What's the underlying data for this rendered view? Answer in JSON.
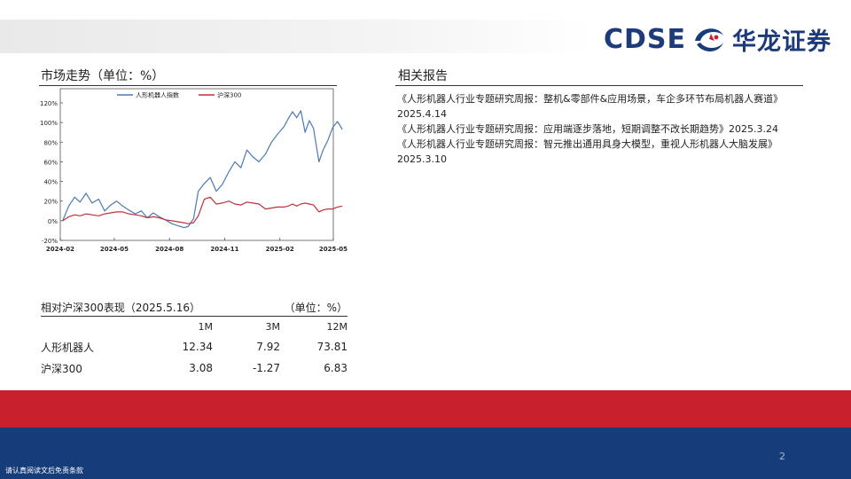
{
  "header": {
    "logo_latin": "CDSE",
    "logo_cn": "华龙证券"
  },
  "market": {
    "title": "市场走势（单位：%）"
  },
  "reports": {
    "title": "相关报告",
    "items": [
      "《人形机器人行业专题研究周报：整机&零部件&应用场景，车企多环节布局机器人赛道》2025.4.14",
      "《人形机器人行业专题研究周报：应用端逐步落地，短期调整不改长期趋势》2025.3.24",
      "《人形机器人行业专题研究周报：智元推出通用具身大模型，重视人形机器人大脑发展》2025.3.10"
    ]
  },
  "chart_data": {
    "type": "line",
    "title": "",
    "xlabel": "",
    "ylabel": "",
    "ylim": [
      -20,
      120
    ],
    "yticks": [
      -20,
      0,
      20,
      40,
      60,
      80,
      100,
      120
    ],
    "ytick_labels": [
      "-20%",
      "0%",
      "20%",
      "40%",
      "60%",
      "80%",
      "100%",
      "120%"
    ],
    "xticks": [
      "2024-02",
      "2024-05",
      "2024-08",
      "2024-11",
      "2025-02",
      "2025-05"
    ],
    "xlim": [
      "2024-02",
      "2025-05"
    ],
    "legend": "top-center",
    "grid": false,
    "series": [
      {
        "name": "人形机器人指数",
        "color": "#4a7ab5",
        "points": [
          [
            "2024-02-05",
            0
          ],
          [
            "2024-02-15",
            15
          ],
          [
            "2024-02-25",
            24
          ],
          [
            "2024-03-05",
            19
          ],
          [
            "2024-03-15",
            28
          ],
          [
            "2024-03-25",
            18
          ],
          [
            "2024-04-05",
            22
          ],
          [
            "2024-04-15",
            10
          ],
          [
            "2024-04-25",
            16
          ],
          [
            "2024-05-05",
            20
          ],
          [
            "2024-05-15",
            15
          ],
          [
            "2024-05-25",
            11
          ],
          [
            "2024-06-05",
            7
          ],
          [
            "2024-06-15",
            10
          ],
          [
            "2024-06-25",
            3
          ],
          [
            "2024-07-05",
            8
          ],
          [
            "2024-07-15",
            4
          ],
          [
            "2024-07-25",
            1
          ],
          [
            "2024-08-05",
            -3
          ],
          [
            "2024-08-15",
            -5
          ],
          [
            "2024-08-25",
            -7
          ],
          [
            "2024-09-01",
            -6
          ],
          [
            "2024-09-10",
            2
          ],
          [
            "2024-09-18",
            30
          ],
          [
            "2024-09-28",
            38
          ],
          [
            "2024-10-08",
            44
          ],
          [
            "2024-10-18",
            30
          ],
          [
            "2024-10-28",
            37
          ],
          [
            "2024-11-08",
            50
          ],
          [
            "2024-11-18",
            60
          ],
          [
            "2024-11-28",
            54
          ],
          [
            "2024-12-08",
            72
          ],
          [
            "2024-12-18",
            65
          ],
          [
            "2024-12-28",
            60
          ],
          [
            "2025-01-08",
            68
          ],
          [
            "2025-01-18",
            80
          ],
          [
            "2025-01-28",
            88
          ],
          [
            "2025-02-08",
            96
          ],
          [
            "2025-02-15",
            104
          ],
          [
            "2025-02-22",
            111
          ],
          [
            "2025-03-01",
            105
          ],
          [
            "2025-03-08",
            112
          ],
          [
            "2025-03-15",
            90
          ],
          [
            "2025-03-22",
            102
          ],
          [
            "2025-03-29",
            94
          ],
          [
            "2025-04-07",
            60
          ],
          [
            "2025-04-14",
            72
          ],
          [
            "2025-04-22",
            82
          ],
          [
            "2025-04-30",
            95
          ],
          [
            "2025-05-08",
            101
          ],
          [
            "2025-05-16",
            93
          ]
        ]
      },
      {
        "name": "沪深300",
        "color": "#c0313a",
        "points": [
          [
            "2024-02-05",
            0
          ],
          [
            "2024-02-15",
            4
          ],
          [
            "2024-02-25",
            6
          ],
          [
            "2024-03-05",
            5
          ],
          [
            "2024-03-15",
            7
          ],
          [
            "2024-03-25",
            6
          ],
          [
            "2024-04-05",
            5
          ],
          [
            "2024-04-15",
            7
          ],
          [
            "2024-04-25",
            8
          ],
          [
            "2024-05-05",
            9
          ],
          [
            "2024-05-15",
            9
          ],
          [
            "2024-05-25",
            7
          ],
          [
            "2024-06-05",
            6
          ],
          [
            "2024-06-15",
            5
          ],
          [
            "2024-06-25",
            3
          ],
          [
            "2024-07-05",
            4
          ],
          [
            "2024-07-15",
            3
          ],
          [
            "2024-07-25",
            1
          ],
          [
            "2024-08-05",
            0
          ],
          [
            "2024-08-15",
            -1
          ],
          [
            "2024-08-25",
            -2
          ],
          [
            "2024-09-01",
            -3
          ],
          [
            "2024-09-10",
            -2
          ],
          [
            "2024-09-18",
            5
          ],
          [
            "2024-09-28",
            22
          ],
          [
            "2024-10-08",
            24
          ],
          [
            "2024-10-18",
            17
          ],
          [
            "2024-10-28",
            18
          ],
          [
            "2024-11-08",
            20
          ],
          [
            "2024-11-18",
            17
          ],
          [
            "2024-11-28",
            16
          ],
          [
            "2024-12-08",
            19
          ],
          [
            "2024-12-18",
            18
          ],
          [
            "2024-12-28",
            17
          ],
          [
            "2025-01-08",
            12
          ],
          [
            "2025-01-18",
            13
          ],
          [
            "2025-01-28",
            14
          ],
          [
            "2025-02-08",
            14
          ],
          [
            "2025-02-15",
            15
          ],
          [
            "2025-02-22",
            17
          ],
          [
            "2025-03-01",
            15
          ],
          [
            "2025-03-08",
            17
          ],
          [
            "2025-03-15",
            18
          ],
          [
            "2025-03-22",
            17
          ],
          [
            "2025-03-29",
            16
          ],
          [
            "2025-04-07",
            9
          ],
          [
            "2025-04-14",
            11
          ],
          [
            "2025-04-22",
            12
          ],
          [
            "2025-04-30",
            12
          ],
          [
            "2025-05-08",
            14
          ],
          [
            "2025-05-16",
            15
          ]
        ]
      }
    ]
  },
  "performance": {
    "title": "相对沪深300表现（2025.5.16）",
    "unit": "（单位：%）",
    "columns": [
      "1M",
      "3M",
      "12M"
    ],
    "rows": [
      {
        "name": "人形机器人",
        "values": [
          "12.34",
          "7.92",
          "73.81"
        ]
      },
      {
        "name": "沪深300",
        "values": [
          "3.08",
          "-1.27",
          "6.83"
        ]
      }
    ]
  },
  "footer": {
    "page_number": "2",
    "disclaimer": "请认真阅读文后免责条款"
  },
  "colors": {
    "brand_blue": "#163d7a",
    "brand_red": "#c8202c"
  }
}
